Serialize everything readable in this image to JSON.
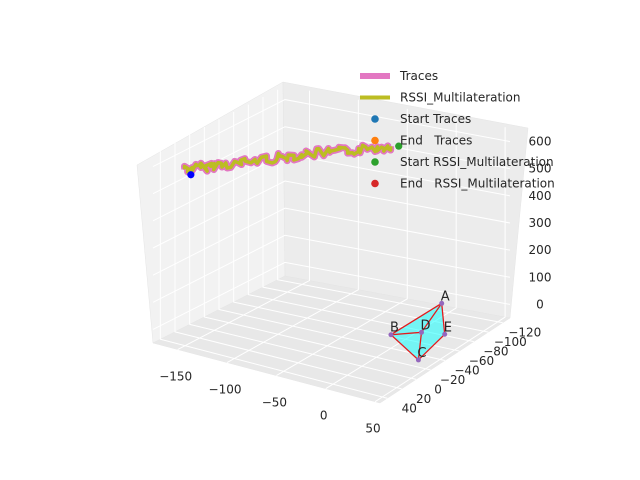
{
  "chart_data": {
    "type": "3d-line-scatter",
    "title": "",
    "xlabel": "",
    "ylabel": "",
    "zlabel": "",
    "x_ticks": [
      "−150",
      "−100",
      "−50",
      "0",
      "50"
    ],
    "y_ticks": [
      "−120",
      "−100",
      "−80",
      "−60",
      "−40",
      "−20",
      "0",
      "20",
      "40"
    ],
    "z_ticks": [
      "0",
      "100",
      "200",
      "300",
      "400",
      "500",
      "600"
    ],
    "xlim": [
      -175,
      55
    ],
    "ylim": [
      -130,
      50
    ],
    "zlim": [
      -50,
      650
    ],
    "grid": true,
    "legend": {
      "placement": "top-right",
      "entries": [
        {
          "label": "Traces",
          "kind": "line",
          "color": "#e377c2"
        },
        {
          "label": "RSSI_Multilateration",
          "kind": "line",
          "color": "#bcbd22"
        },
        {
          "label": "Start Traces",
          "kind": "point",
          "color": "#1f77b4"
        },
        {
          "label": "End   Traces",
          "kind": "point",
          "color": "#ff7f0e"
        },
        {
          "label": "Start RSSI_Multilateration",
          "kind": "point",
          "color": "#2ca02c"
        },
        {
          "label": "End   RSSI_Multilateration",
          "kind": "point",
          "color": "#d62728"
        }
      ]
    },
    "anchors": [
      {
        "label": "A",
        "x": 0,
        "y": -110,
        "z": 0
      },
      {
        "label": "B",
        "x": 0,
        "y": -40,
        "z": 0
      },
      {
        "label": "C",
        "x": 50,
        "y": -10,
        "z": 0
      },
      {
        "label": "D",
        "x": 20,
        "y": -55,
        "z": 0
      },
      {
        "label": "E",
        "x": 40,
        "y": -60,
        "z": 0
      }
    ],
    "anchor_edges": [
      [
        "A",
        "B"
      ],
      [
        "B",
        "C"
      ],
      [
        "C",
        "E"
      ],
      [
        "E",
        "A"
      ],
      [
        "B",
        "D"
      ],
      [
        "D",
        "C"
      ],
      [
        "D",
        "A"
      ]
    ],
    "anchor_fill_color": "#00ffff",
    "anchor_edge_color": "#e31a1c",
    "trace_color": "#e377c2",
    "rssi_color": "#bcbd22",
    "start_trace_marker_color": "#0000ff",
    "start_rssi_marker_color": "#2ca02c",
    "trace_path": [
      {
        "x": -165,
        "y": 20,
        "z": 560
      },
      {
        "x": -155,
        "y": 15,
        "z": 565
      },
      {
        "x": -145,
        "y": 5,
        "z": 570
      },
      {
        "x": -130,
        "y": -5,
        "z": 575
      },
      {
        "x": -115,
        "y": -12,
        "z": 590
      },
      {
        "x": -100,
        "y": -20,
        "z": 600
      },
      {
        "x": -85,
        "y": -28,
        "z": 610
      },
      {
        "x": -70,
        "y": -35,
        "z": 620
      },
      {
        "x": -55,
        "y": -42,
        "z": 625
      },
      {
        "x": -40,
        "y": -48,
        "z": 635
      },
      {
        "x": -25,
        "y": -55,
        "z": 645
      },
      {
        "x": -15,
        "y": -60,
        "z": 650
      }
    ]
  }
}
